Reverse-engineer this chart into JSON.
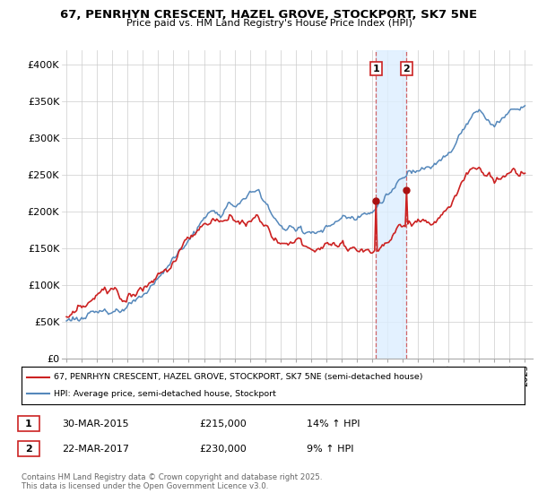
{
  "title": "67, PENRHYN CRESCENT, HAZEL GROVE, STOCKPORT, SK7 5NE",
  "subtitle": "Price paid vs. HM Land Registry's House Price Index (HPI)",
  "ylim": [
    0,
    420000
  ],
  "yticks": [
    0,
    50000,
    100000,
    150000,
    200000,
    250000,
    300000,
    350000,
    400000
  ],
  "ytick_labels": [
    "£0",
    "£50K",
    "£100K",
    "£150K",
    "£200K",
    "£250K",
    "£300K",
    "£350K",
    "£400K"
  ],
  "line1_color": "#cc2222",
  "line2_color": "#5588bb",
  "span_color": "#ddeeff",
  "marker_color": "#aa1111",
  "sale1_year": 2015.25,
  "sale1_price_val": 215000,
  "sale2_year": 2017.25,
  "sale2_price_val": 230000,
  "sale1_date": "30-MAR-2015",
  "sale1_price": "£215,000",
  "sale1_hpi": "14% ↑ HPI",
  "sale2_date": "22-MAR-2017",
  "sale2_price": "£230,000",
  "sale2_hpi": "9% ↑ HPI",
  "legend1": "67, PENRHYN CRESCENT, HAZEL GROVE, STOCKPORT, SK7 5NE (semi-detached house)",
  "legend2": "HPI: Average price, semi-detached house, Stockport",
  "footnote": "Contains HM Land Registry data © Crown copyright and database right 2025.\nThis data is licensed under the Open Government Licence v3.0.",
  "grid_color": "#cccccc",
  "xlim_left": 1994.7,
  "xlim_right": 2025.5
}
